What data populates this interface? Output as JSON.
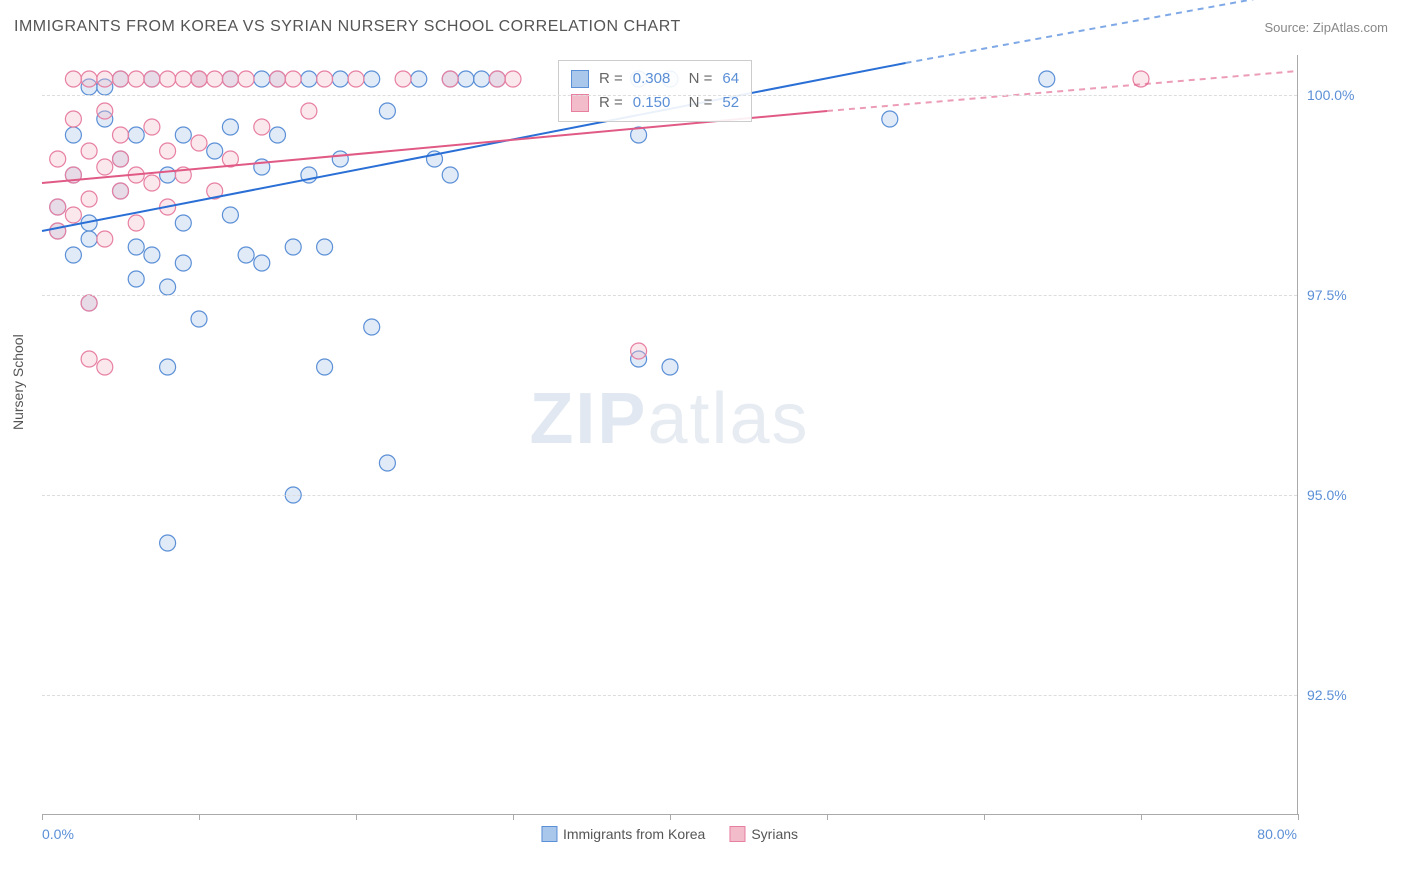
{
  "title": "IMMIGRANTS FROM KOREA VS SYRIAN NURSERY SCHOOL CORRELATION CHART",
  "source": "Source: ZipAtlas.com",
  "yaxis_label": "Nursery School",
  "watermark": {
    "part1": "ZIP",
    "part2": "atlas"
  },
  "chart": {
    "type": "scatter",
    "background_color": "#ffffff",
    "grid_color": "#dddddd",
    "axis_color": "#aaaaaa",
    "tick_label_color": "#5b8fd6",
    "marker_radius": 8,
    "marker_fill_opacity": 0.35,
    "trendline_width": 2.0,
    "xlim": [
      0.0,
      80.0
    ],
    "ylim": [
      91.0,
      100.5
    ],
    "x_ticks": [
      0,
      10,
      20,
      30,
      40,
      50,
      60,
      70,
      80
    ],
    "x_tick_labels": {
      "0": "0.0%",
      "80": "80.0%"
    },
    "y_ticks": [
      92.5,
      95.0,
      97.5,
      100.0
    ],
    "y_tick_labels": [
      "92.5%",
      "95.0%",
      "97.5%",
      "100.0%"
    ],
    "series": [
      {
        "name": "Immigrants from Korea",
        "color_fill": "#a9c7ea",
        "color_stroke": "#5b8fd6",
        "R": "0.308",
        "N": "64",
        "trendline": {
          "x1": 0,
          "y1": 98.3,
          "x2": 55,
          "y2": 100.4,
          "color": "#2a6fd6",
          "dash_after_x": 55,
          "dash_end_x": 80,
          "dash_end_y": 101.3
        },
        "points": [
          [
            1,
            98.3
          ],
          [
            1,
            98.6
          ],
          [
            2,
            99.0
          ],
          [
            2,
            98.0
          ],
          [
            2,
            99.5
          ],
          [
            3,
            98.4
          ],
          [
            3,
            100.1
          ],
          [
            3,
            98.2
          ],
          [
            3,
            97.4
          ],
          [
            4,
            99.7
          ],
          [
            4,
            100.1
          ],
          [
            5,
            98.8
          ],
          [
            5,
            99.2
          ],
          [
            5,
            100.2
          ],
          [
            6,
            99.5
          ],
          [
            6,
            98.1
          ],
          [
            6,
            97.7
          ],
          [
            7,
            100.2
          ],
          [
            7,
            98.0
          ],
          [
            8,
            99.0
          ],
          [
            8,
            96.6
          ],
          [
            8,
            97.6
          ],
          [
            9,
            99.5
          ],
          [
            9,
            98.4
          ],
          [
            9,
            97.9
          ],
          [
            10,
            97.2
          ],
          [
            10,
            100.2
          ],
          [
            11,
            99.3
          ],
          [
            12,
            99.6
          ],
          [
            12,
            98.5
          ],
          [
            12,
            100.2
          ],
          [
            13,
            98.0
          ],
          [
            14,
            100.2
          ],
          [
            14,
            99.1
          ],
          [
            14,
            97.9
          ],
          [
            15,
            100.2
          ],
          [
            15,
            99.5
          ],
          [
            16,
            98.1
          ],
          [
            16,
            95.0
          ],
          [
            17,
            99.0
          ],
          [
            17,
            100.2
          ],
          [
            18,
            98.1
          ],
          [
            18,
            96.6
          ],
          [
            19,
            100.2
          ],
          [
            19,
            99.2
          ],
          [
            21,
            100.2
          ],
          [
            21,
            97.1
          ],
          [
            22,
            99.8
          ],
          [
            22,
            95.4
          ],
          [
            24,
            100.2
          ],
          [
            25,
            99.2
          ],
          [
            26,
            100.2
          ],
          [
            26,
            99.0
          ],
          [
            27,
            100.2
          ],
          [
            28,
            100.2
          ],
          [
            29,
            100.2
          ],
          [
            8,
            94.4
          ],
          [
            38,
            99.5
          ],
          [
            38,
            96.7
          ],
          [
            38,
            100.2
          ],
          [
            40,
            96.6
          ],
          [
            40,
            100.2
          ],
          [
            64,
            100.2
          ],
          [
            54,
            99.7
          ]
        ]
      },
      {
        "name": "Syrians",
        "color_fill": "#f3bccb",
        "color_stroke": "#e77fa1",
        "R": "0.150",
        "N": "52",
        "trendline": {
          "x1": 0,
          "y1": 98.9,
          "x2": 50,
          "y2": 99.8,
          "color": "#e05a85",
          "dash_after_x": 50,
          "dash_end_x": 80,
          "dash_end_y": 100.3
        },
        "points": [
          [
            1,
            98.6
          ],
          [
            1,
            99.2
          ],
          [
            1,
            98.3
          ],
          [
            2,
            99.7
          ],
          [
            2,
            99.0
          ],
          [
            2,
            98.5
          ],
          [
            2,
            100.2
          ],
          [
            3,
            99.3
          ],
          [
            3,
            98.7
          ],
          [
            3,
            100.2
          ],
          [
            3,
            97.4
          ],
          [
            4,
            99.8
          ],
          [
            4,
            98.2
          ],
          [
            4,
            100.2
          ],
          [
            4,
            99.1
          ],
          [
            5,
            99.5
          ],
          [
            5,
            100.2
          ],
          [
            5,
            98.8
          ],
          [
            5,
            99.2
          ],
          [
            6,
            100.2
          ],
          [
            6,
            99.0
          ],
          [
            6,
            98.4
          ],
          [
            7,
            99.6
          ],
          [
            7,
            100.2
          ],
          [
            7,
            98.9
          ],
          [
            8,
            100.2
          ],
          [
            8,
            99.3
          ],
          [
            8,
            98.6
          ],
          [
            9,
            100.2
          ],
          [
            9,
            99.0
          ],
          [
            10,
            100.2
          ],
          [
            10,
            99.4
          ],
          [
            11,
            100.2
          ],
          [
            11,
            98.8
          ],
          [
            12,
            100.2
          ],
          [
            12,
            99.2
          ],
          [
            13,
            100.2
          ],
          [
            14,
            99.6
          ],
          [
            15,
            100.2
          ],
          [
            16,
            100.2
          ],
          [
            17,
            99.8
          ],
          [
            18,
            100.2
          ],
          [
            20,
            100.2
          ],
          [
            23,
            100.2
          ],
          [
            26,
            100.2
          ],
          [
            29,
            100.2
          ],
          [
            30,
            100.2
          ],
          [
            3,
            96.7
          ],
          [
            38,
            96.8
          ],
          [
            70,
            100.2
          ],
          [
            4,
            96.6
          ],
          [
            10,
            100.2
          ]
        ]
      }
    ],
    "legend_bottom": [
      {
        "label": "Immigrants from Korea",
        "fill": "#a9c7ea",
        "stroke": "#5b8fd6"
      },
      {
        "label": "Syrians",
        "fill": "#f3bccb",
        "stroke": "#e77fa1"
      }
    ]
  }
}
